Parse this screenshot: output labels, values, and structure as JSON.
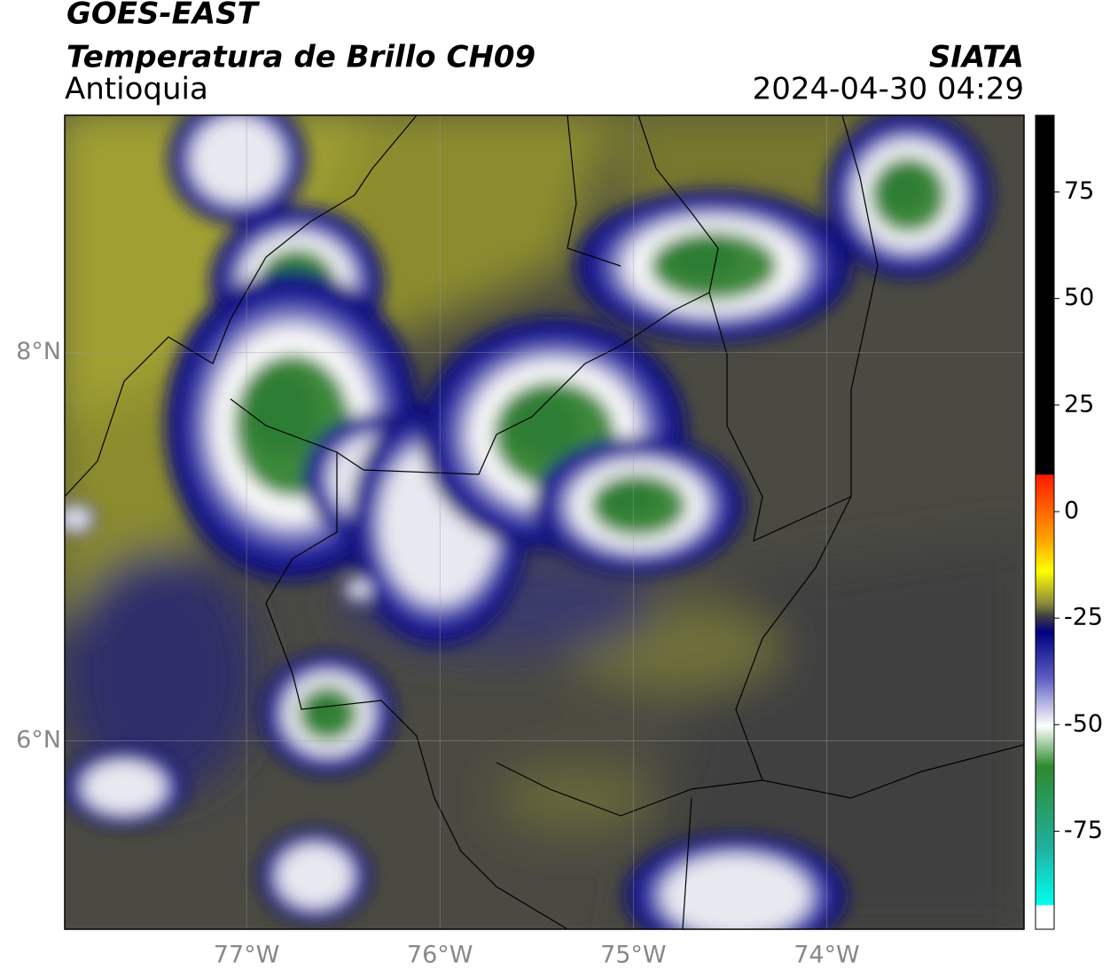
{
  "chart_data": {
    "type": "contour-map",
    "title": "GOES-EAST",
    "subtitle": "Temperatura de Brillo CH09",
    "region": "Antioquia",
    "source": "SIATA",
    "timestamp": "2024-04-30 04:29",
    "xlim": [
      -77.94,
      -72.98
    ],
    "ylim": [
      5.03,
      9.22
    ],
    "xticks": [
      {
        "value": -77,
        "label": "77°W"
      },
      {
        "value": -76,
        "label": "76°W"
      },
      {
        "value": -75,
        "label": "75°W"
      },
      {
        "value": -74,
        "label": "74°W"
      }
    ],
    "yticks": [
      {
        "value": 6,
        "label": "6°N"
      },
      {
        "value": 8,
        "label": "8°N"
      }
    ],
    "grid": true,
    "colorbar": {
      "lim": [
        -98,
        93
      ],
      "ticks": [
        75,
        50,
        25,
        0,
        -25,
        -50,
        -75
      ]
    }
  }
}
